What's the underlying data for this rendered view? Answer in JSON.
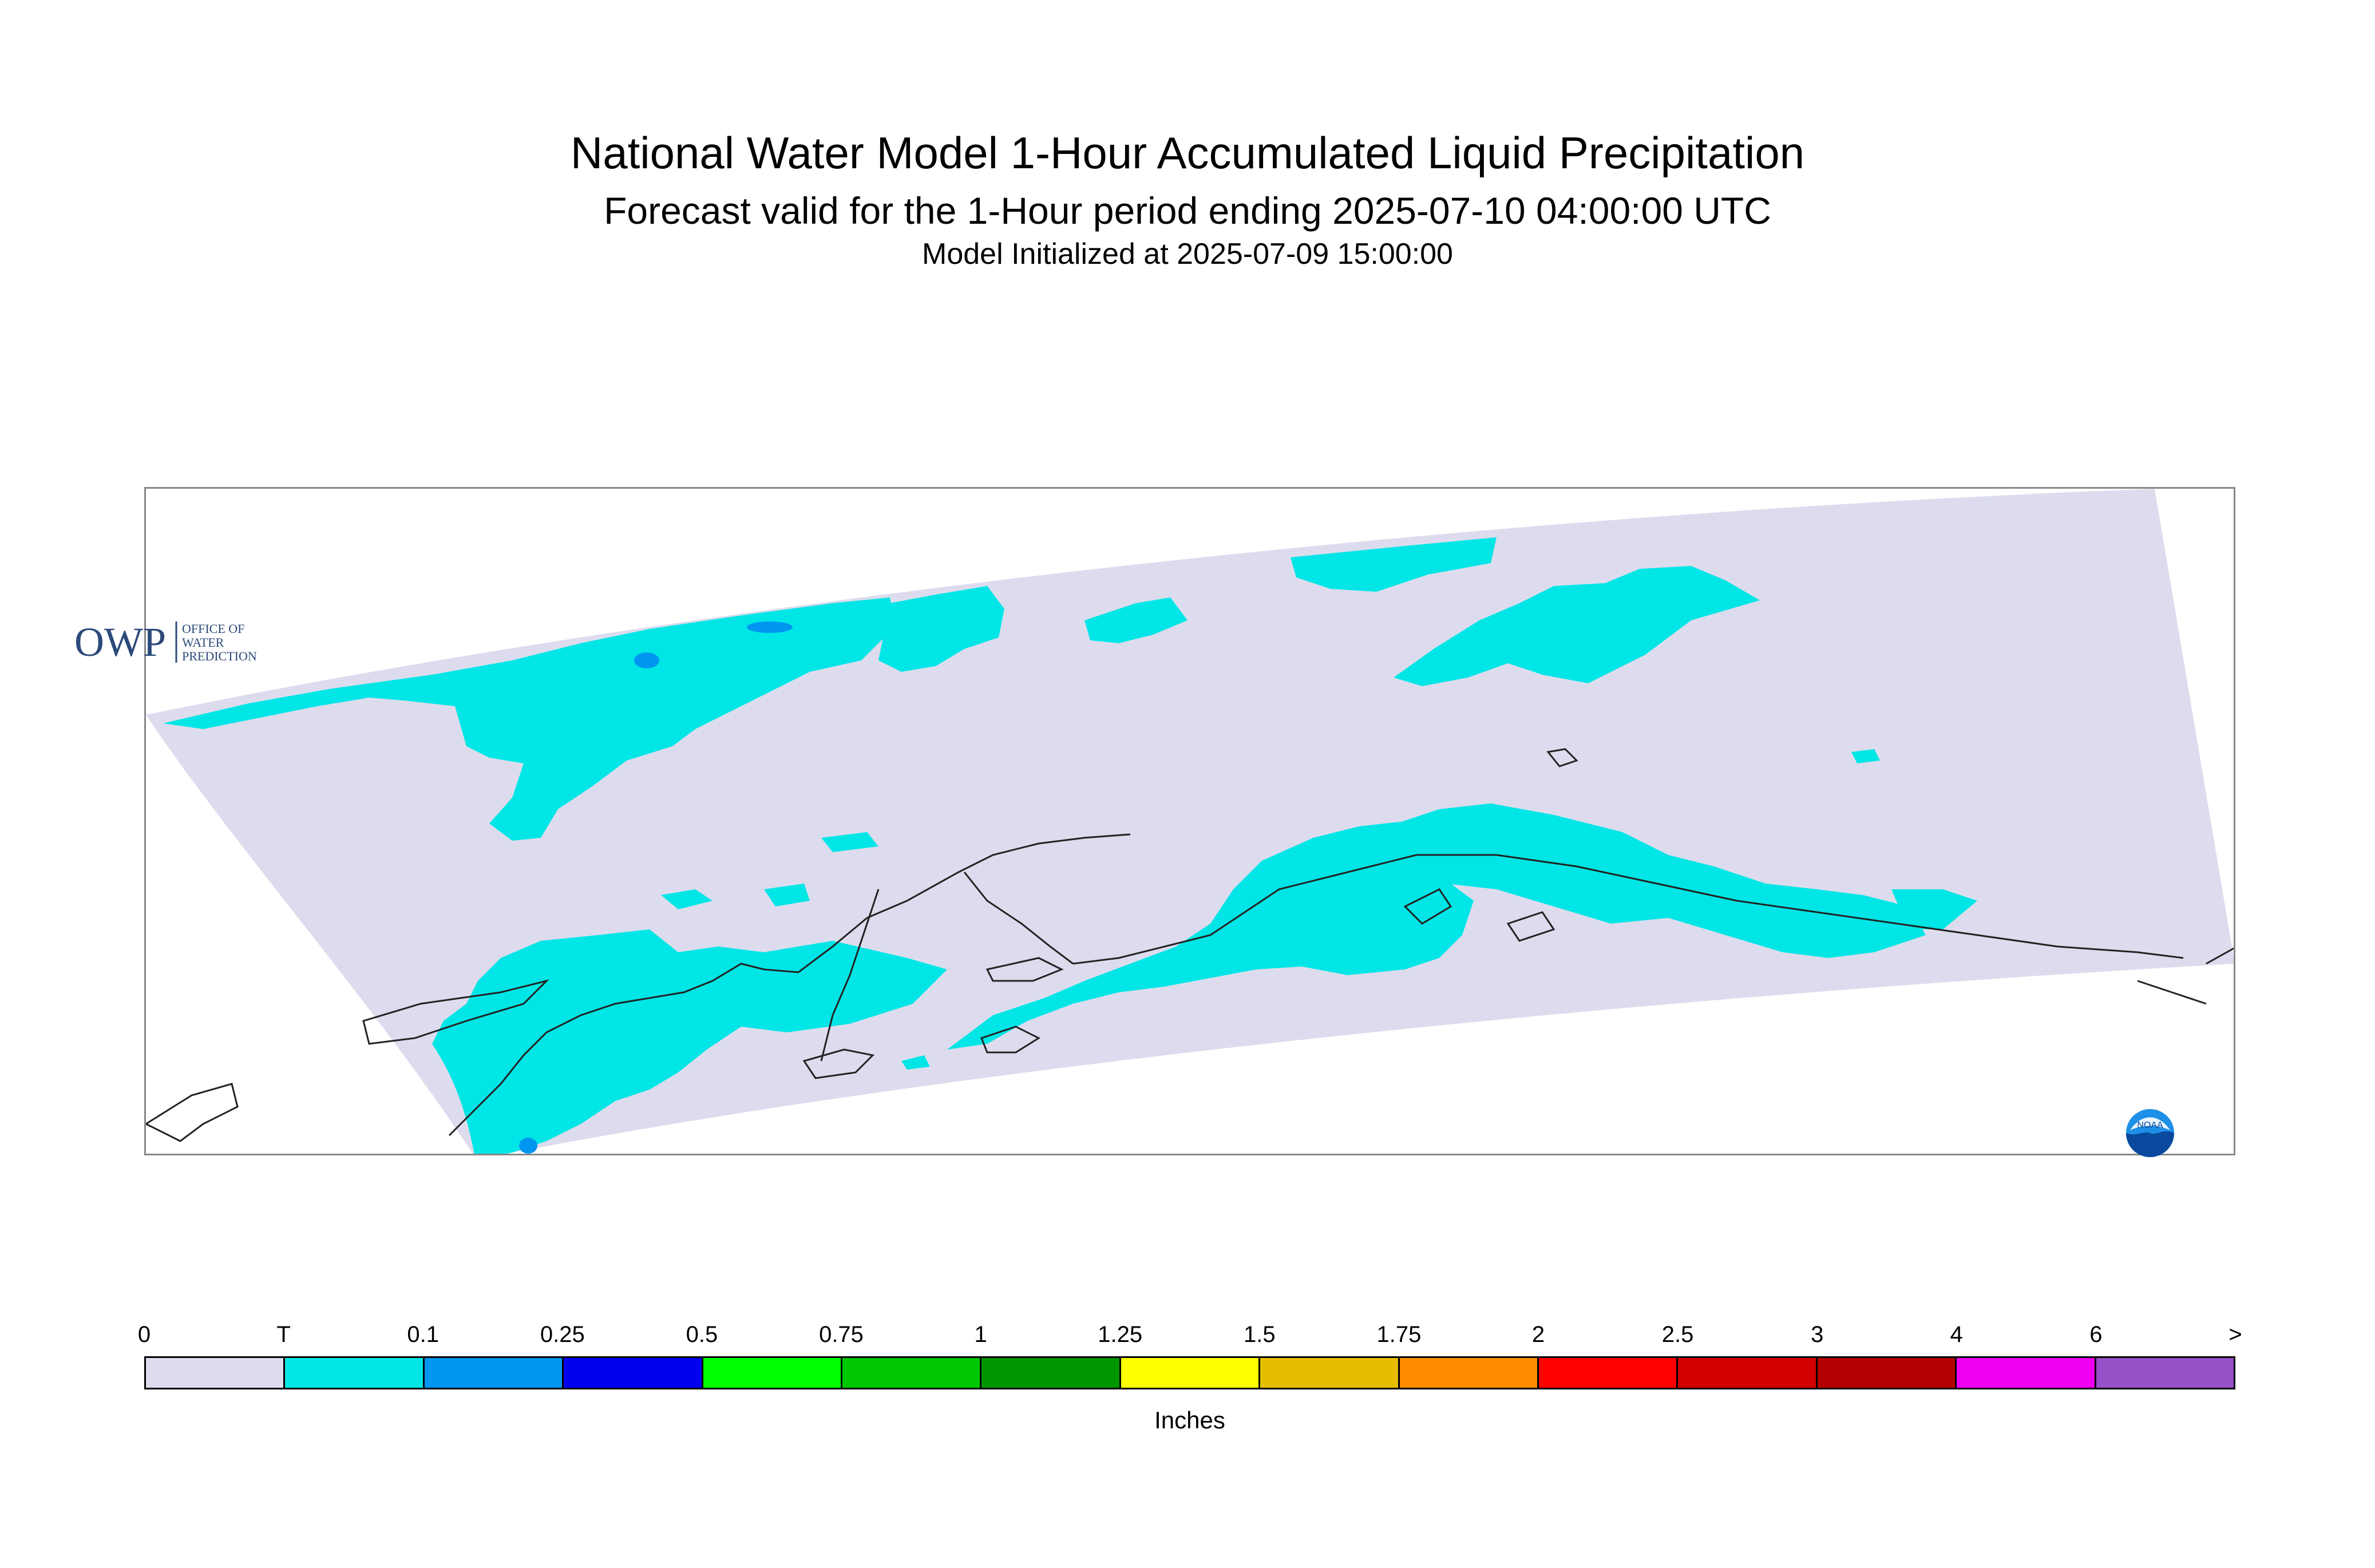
{
  "header": {
    "title": "National Water Model 1-Hour Accumulated Liquid Precipitation",
    "subtitle": "Forecast valid for the 1-Hour period ending 2025-07-10 04:00:00 UTC",
    "init_line": "Model Initialized at 2025-07-09 15:00:00"
  },
  "map": {
    "domain_color": "#dcdcee",
    "trace_color": "#00e6e6",
    "light_blue_color": "#0096f0",
    "coast_color": "#222222",
    "icons": [
      "owp-logo",
      "noaa-logo"
    ]
  },
  "owp_logo": {
    "letters": "OWP",
    "line1": "OFFICE OF",
    "line2": "WATER",
    "line3": "PREDICTION"
  },
  "noaa_logo": {
    "text": "NOAA"
  },
  "legend": {
    "ticks": [
      "0",
      "T",
      "0.1",
      "0.25",
      "0.5",
      "0.75",
      "1",
      "1.25",
      "1.5",
      "1.75",
      "2",
      "2.5",
      "3",
      "4",
      "6",
      ">"
    ],
    "colors": [
      "#dcdcee",
      "#00e6e6",
      "#0096f0",
      "#0000f0",
      "#00ff00",
      "#00c800",
      "#009600",
      "#ffff00",
      "#e6be00",
      "#ff8c00",
      "#ff0000",
      "#d20000",
      "#b40000",
      "#f000f0",
      "#9650c8"
    ],
    "unit": "Inches"
  }
}
